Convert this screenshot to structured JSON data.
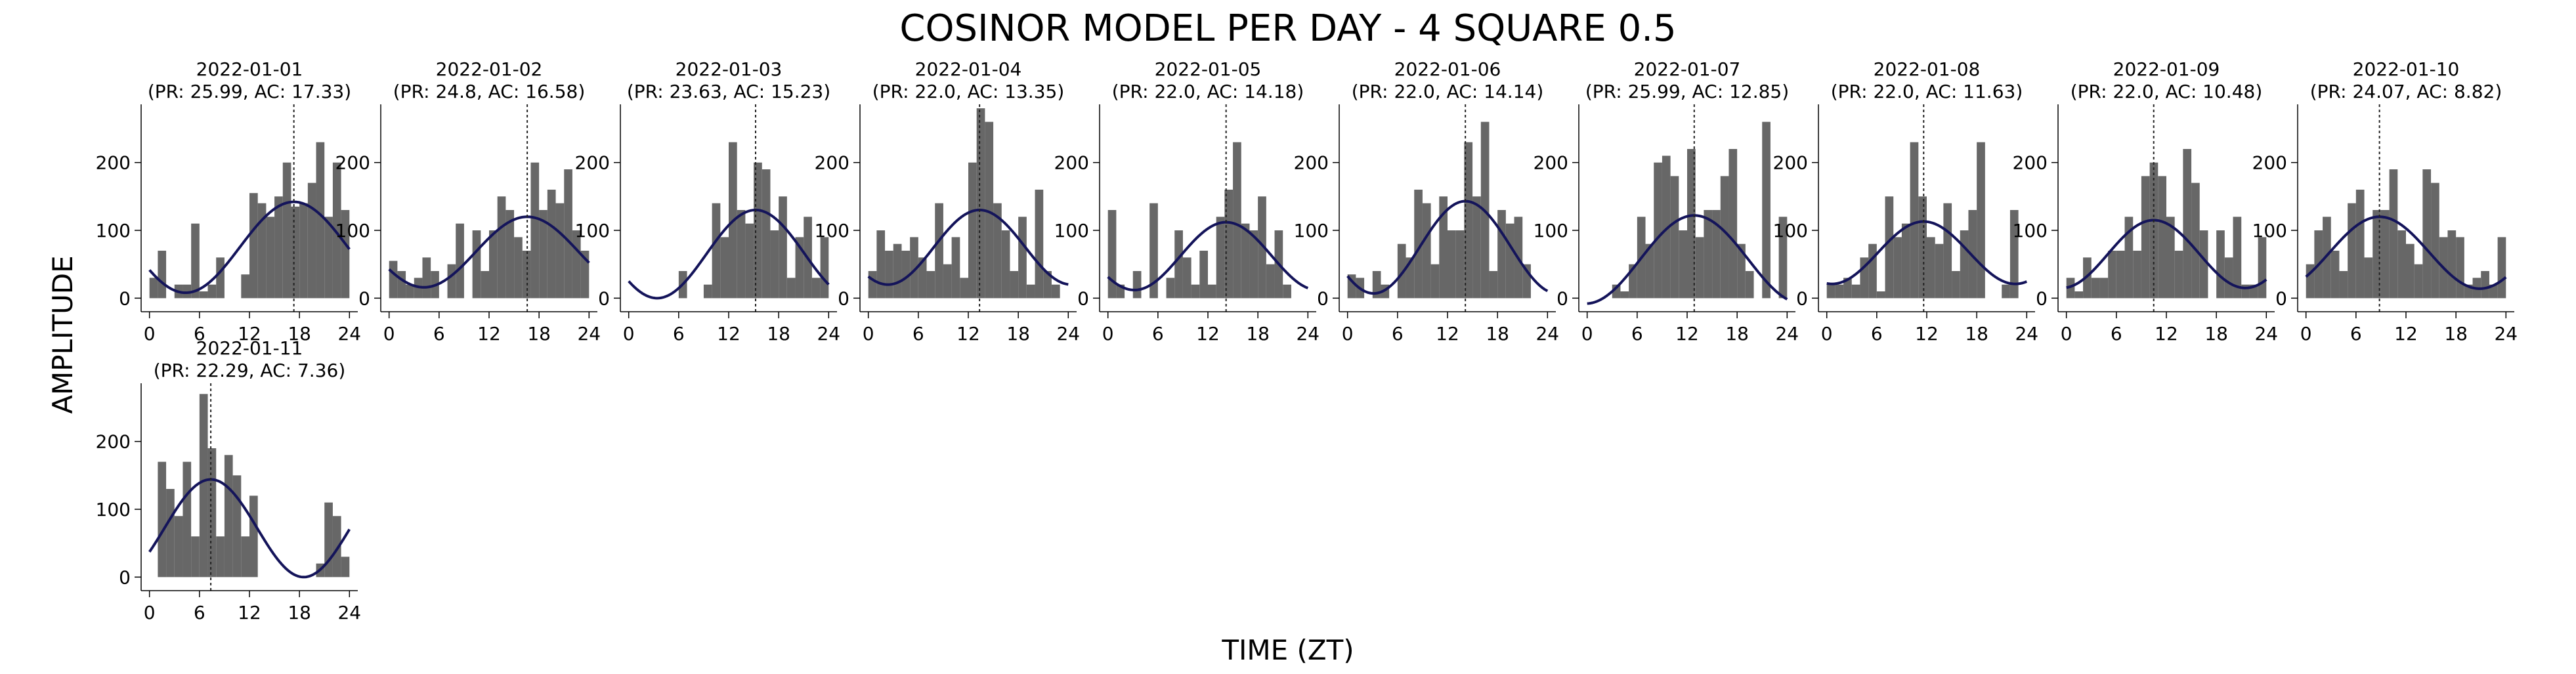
{
  "figure": {
    "title": "COSINOR MODEL PER DAY - 4 SQUARE 0.5",
    "xlabel": "TIME (ZT)",
    "ylabel": "AMPLITUDE"
  },
  "colors": {
    "bar": "#676767",
    "curve": "#14145a",
    "acrophase_line": "#222222",
    "axis": "#000000"
  },
  "chart_data": {
    "type": "bar",
    "layout": {
      "rows": 2,
      "cols": 10
    },
    "xlim": [
      -1,
      25
    ],
    "ylim": [
      -20,
      280
    ],
    "xticks": [
      0,
      6,
      12,
      18,
      24
    ],
    "yticks": [
      0,
      100,
      200
    ],
    "panels": [
      {
        "date": "2022-01-01",
        "subtitle": "(PR: 25.99, AC: 17.33)",
        "acrophase": 17.33,
        "period": 25.99,
        "mesor": 75,
        "amplitude": 67,
        "bins": [
          0,
          1,
          2,
          3,
          4,
          5,
          6,
          7,
          8,
          9,
          10,
          11,
          12,
          13,
          14,
          15,
          16,
          17,
          18,
          19,
          20,
          21,
          22,
          23
        ],
        "values": [
          30,
          70,
          0,
          20,
          20,
          110,
          10,
          20,
          60,
          0,
          0,
          35,
          155,
          140,
          120,
          150,
          200,
          135,
          140,
          170,
          230,
          120,
          200,
          130
        ]
      },
      {
        "date": "2022-01-02",
        "subtitle": "(PR: 24.8, AC: 16.58)",
        "acrophase": 16.58,
        "period": 24.8,
        "mesor": 68,
        "amplitude": 52,
        "bins": [
          0,
          1,
          2,
          3,
          4,
          5,
          6,
          7,
          8,
          9,
          10,
          11,
          12,
          13,
          14,
          15,
          16,
          17,
          18,
          19,
          20,
          21,
          22,
          23
        ],
        "values": [
          55,
          40,
          20,
          30,
          60,
          40,
          0,
          50,
          110,
          0,
          100,
          40,
          100,
          150,
          130,
          90,
          70,
          200,
          130,
          160,
          140,
          190,
          100,
          70
        ]
      },
      {
        "date": "2022-01-03",
        "subtitle": "(PR: 23.63, AC: 15.23)",
        "acrophase": 15.23,
        "period": 23.63,
        "mesor": 65,
        "amplitude": 65,
        "bins": [
          0,
          1,
          2,
          3,
          4,
          5,
          6,
          7,
          8,
          9,
          10,
          11,
          12,
          13,
          14,
          15,
          16,
          17,
          18,
          19,
          20,
          21,
          22,
          23
        ],
        "values": [
          0,
          0,
          0,
          0,
          0,
          0,
          40,
          0,
          0,
          20,
          140,
          90,
          230,
          130,
          110,
          200,
          190,
          100,
          150,
          30,
          90,
          120,
          30,
          90
        ]
      },
      {
        "date": "2022-01-04",
        "subtitle": "(PR: 22.0, AC: 13.35)",
        "acrophase": 13.35,
        "period": 22.0,
        "mesor": 75,
        "amplitude": 55,
        "bins": [
          0,
          1,
          2,
          3,
          4,
          5,
          6,
          7,
          8,
          9,
          10,
          11,
          12,
          13,
          14,
          15,
          16,
          17,
          18,
          19,
          20,
          21,
          22,
          23
        ],
        "values": [
          40,
          100,
          70,
          80,
          70,
          90,
          60,
          40,
          140,
          50,
          90,
          30,
          200,
          280,
          260,
          140,
          100,
          40,
          120,
          20,
          160,
          40,
          20,
          0
        ]
      },
      {
        "date": "2022-01-05",
        "subtitle": "(PR: 22.0, AC: 14.18)",
        "acrophase": 14.18,
        "period": 22.0,
        "mesor": 62,
        "amplitude": 50,
        "bins": [
          0,
          1,
          2,
          3,
          4,
          5,
          6,
          7,
          8,
          9,
          10,
          11,
          12,
          13,
          14,
          15,
          16,
          17,
          18,
          19,
          20,
          21,
          22,
          23
        ],
        "values": [
          130,
          20,
          0,
          40,
          0,
          140,
          0,
          30,
          100,
          60,
          20,
          70,
          20,
          120,
          160,
          230,
          110,
          100,
          150,
          50,
          100,
          20,
          0,
          0
        ]
      },
      {
        "date": "2022-01-06",
        "subtitle": "(PR: 22.0, AC: 14.14)",
        "acrophase": 14.14,
        "period": 22.0,
        "mesor": 75,
        "amplitude": 68,
        "bins": [
          0,
          1,
          2,
          3,
          4,
          5,
          6,
          7,
          8,
          9,
          10,
          11,
          12,
          13,
          14,
          15,
          16,
          17,
          18,
          19,
          20,
          21,
          22,
          23
        ],
        "values": [
          35,
          30,
          0,
          40,
          20,
          0,
          80,
          60,
          160,
          140,
          50,
          150,
          100,
          100,
          230,
          150,
          260,
          40,
          130,
          110,
          120,
          50,
          0,
          0
        ]
      },
      {
        "date": "2022-01-07",
        "subtitle": "(PR: 25.99, AC: 12.85)",
        "acrophase": 12.85,
        "period": 25.99,
        "mesor": 57,
        "amplitude": 65,
        "bins": [
          0,
          1,
          2,
          3,
          4,
          5,
          6,
          7,
          8,
          9,
          10,
          11,
          12,
          13,
          14,
          15,
          16,
          17,
          18,
          19,
          20,
          21,
          22,
          23
        ],
        "values": [
          0,
          0,
          0,
          20,
          10,
          50,
          120,
          80,
          200,
          210,
          180,
          100,
          220,
          90,
          130,
          130,
          180,
          220,
          80,
          40,
          0,
          260,
          0,
          120
        ]
      },
      {
        "date": "2022-01-08",
        "subtitle": "(PR: 22.0, AC: 11.63)",
        "acrophase": 11.63,
        "period": 22.0,
        "mesor": 67,
        "amplitude": 46,
        "bins": [
          0,
          1,
          2,
          3,
          4,
          5,
          6,
          7,
          8,
          9,
          10,
          11,
          12,
          13,
          14,
          15,
          16,
          17,
          18,
          19,
          20,
          21,
          22,
          23
        ],
        "values": [
          20,
          20,
          30,
          20,
          60,
          80,
          10,
          150,
          90,
          110,
          230,
          150,
          90,
          80,
          140,
          40,
          100,
          130,
          230,
          0,
          0,
          20,
          130,
          0
        ]
      },
      {
        "date": "2022-01-09",
        "subtitle": "(PR: 22.0, AC: 10.48)",
        "acrophase": 10.48,
        "period": 22.0,
        "mesor": 65,
        "amplitude": 50,
        "bins": [
          0,
          1,
          2,
          3,
          4,
          5,
          6,
          7,
          8,
          9,
          10,
          11,
          12,
          13,
          14,
          15,
          16,
          17,
          18,
          19,
          20,
          21,
          22,
          23
        ],
        "values": [
          30,
          10,
          60,
          30,
          30,
          70,
          70,
          120,
          70,
          180,
          200,
          180,
          120,
          70,
          220,
          170,
          100,
          0,
          100,
          60,
          120,
          20,
          20,
          90
        ]
      },
      {
        "date": "2022-01-10",
        "subtitle": "(PR: 24.07, AC: 8.82)",
        "acrophase": 8.82,
        "period": 24.07,
        "mesor": 67,
        "amplitude": 53,
        "bins": [
          0,
          1,
          2,
          3,
          4,
          5,
          6,
          7,
          8,
          9,
          10,
          11,
          12,
          13,
          14,
          15,
          16,
          17,
          18,
          19,
          20,
          21,
          22,
          23
        ],
        "values": [
          50,
          100,
          120,
          70,
          40,
          140,
          160,
          60,
          130,
          130,
          190,
          100,
          80,
          50,
          190,
          170,
          90,
          100,
          90,
          20,
          30,
          40,
          20,
          90
        ]
      },
      {
        "date": "2022-01-11",
        "subtitle": "(PR: 22.29, AC: 7.36)",
        "acrophase": 7.36,
        "period": 22.29,
        "mesor": 72,
        "amplitude": 72,
        "bins": [
          0,
          1,
          2,
          3,
          4,
          5,
          6,
          7,
          8,
          9,
          10,
          11,
          12,
          13,
          14,
          15,
          16,
          17,
          18,
          19,
          20,
          21,
          22,
          23
        ],
        "values": [
          0,
          170,
          130,
          90,
          170,
          60,
          270,
          190,
          60,
          180,
          150,
          60,
          120,
          0,
          0,
          0,
          0,
          0,
          0,
          0,
          20,
          110,
          90,
          30
        ]
      }
    ]
  }
}
